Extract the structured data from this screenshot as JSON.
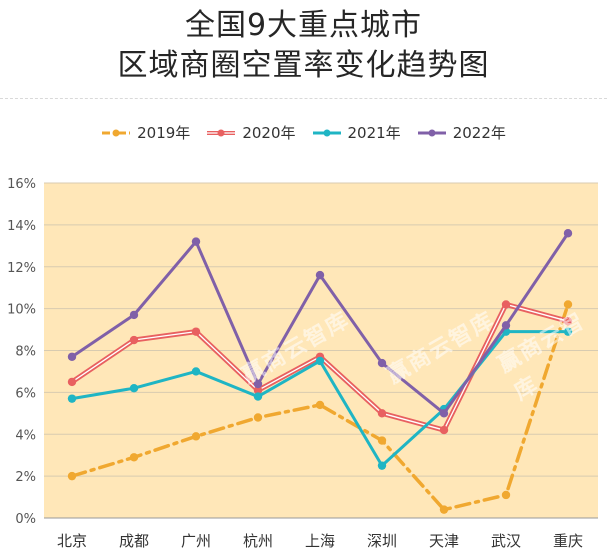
{
  "title": {
    "line1": "全国9大重点城市",
    "line2": "区域商圈空置率变化趋势图"
  },
  "chart_data": {
    "type": "line",
    "categories": [
      "北京",
      "成都",
      "广州",
      "杭州",
      "上海",
      "深圳",
      "天津",
      "武汉",
      "重庆"
    ],
    "ylim": [
      0,
      16
    ],
    "yticks": [
      0,
      2,
      4,
      6,
      8,
      10,
      12,
      14,
      16
    ],
    "ytick_labels": [
      "0%",
      "2%",
      "4%",
      "6%",
      "8%",
      "10%",
      "12%",
      "14%",
      "16%"
    ],
    "grid": true,
    "legend_position": "top",
    "series": [
      {
        "name": "2019年",
        "color": "#f0a830",
        "style": "dash-dot",
        "values": [
          2.0,
          2.9,
          3.9,
          4.8,
          5.4,
          3.7,
          0.4,
          1.1,
          10.2
        ]
      },
      {
        "name": "2020年",
        "color": "#e86060",
        "style": "double",
        "values": [
          6.5,
          8.5,
          8.9,
          6.1,
          7.7,
          5.0,
          4.2,
          10.2,
          9.4
        ]
      },
      {
        "name": "2021年",
        "color": "#1fb5c4",
        "style": "solid",
        "values": [
          5.7,
          6.2,
          7.0,
          5.8,
          7.5,
          2.5,
          5.2,
          8.9,
          8.9
        ]
      },
      {
        "name": "2022年",
        "color": "#8060a8",
        "style": "solid",
        "values": [
          7.7,
          9.7,
          13.2,
          6.4,
          11.6,
          7.4,
          5.0,
          9.2,
          13.6
        ]
      }
    ]
  },
  "watermark": "赢商云智库"
}
